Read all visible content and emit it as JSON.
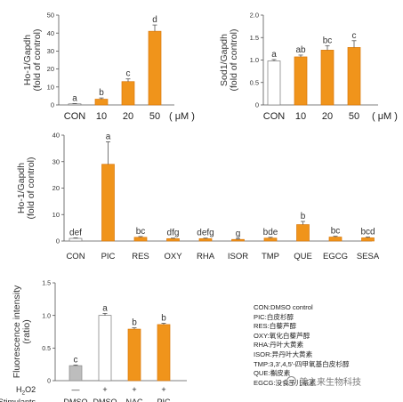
{
  "chart_data": [
    {
      "id": "panel-a",
      "type": "bar",
      "ylabel": "Ho-1/Gapdh\n(fold of control)",
      "ylim": [
        0,
        50
      ],
      "yticks": [
        0,
        10,
        20,
        30,
        40,
        50
      ],
      "categories": [
        "CON",
        "10",
        "20",
        "50"
      ],
      "unit_label": "( μM )",
      "values": [
        0.6,
        3.2,
        13,
        41
      ],
      "errors": [
        0.2,
        0.7,
        1.5,
        3.5
      ],
      "letters": [
        "a",
        "b",
        "c",
        "d"
      ],
      "fills": [
        "#ffffff",
        "#f0941b",
        "#f0941b",
        "#f0941b"
      ],
      "grid": false
    },
    {
      "id": "panel-b",
      "type": "bar",
      "ylabel": "Sod1/Gapdh\n(fold of control)",
      "ylim": [
        0,
        2.0
      ],
      "yticks": [
        0,
        0.5,
        1.0,
        1.5,
        2.0
      ],
      "ytick_labels": [
        "0",
        "0.5",
        "1.0",
        "1.5",
        "2.0"
      ],
      "categories": [
        "CON",
        "10",
        "20",
        "50"
      ],
      "unit_label": "( μM )",
      "values": [
        0.98,
        1.07,
        1.22,
        1.28
      ],
      "errors": [
        0.03,
        0.04,
        0.1,
        0.15
      ],
      "letters": [
        "a",
        "ab",
        "bc",
        "c"
      ],
      "fills": [
        "#ffffff",
        "#f0941b",
        "#f0941b",
        "#f0941b"
      ],
      "grid": false
    },
    {
      "id": "panel-c",
      "type": "bar",
      "ylabel": "Ho-1/Gapdh\n(fold of control)",
      "ylim": [
        0,
        40
      ],
      "yticks": [
        0,
        10,
        20,
        30,
        40
      ],
      "categories": [
        "CON",
        "PIC",
        "RES",
        "OXY",
        "RHA",
        "ISOR",
        "TMP",
        "QUE",
        "EGCG",
        "SESA"
      ],
      "values": [
        1.0,
        29,
        1.4,
        0.9,
        0.9,
        0.6,
        1.1,
        6.2,
        1.5,
        1.2
      ],
      "errors": [
        0.2,
        8.5,
        0.3,
        0.2,
        0.2,
        0.2,
        0.3,
        1.2,
        0.3,
        0.3
      ],
      "letters": [
        "def",
        "a",
        "bc",
        "dfg",
        "defg",
        "g",
        "bde",
        "b",
        "bc",
        "bcd"
      ],
      "fills": [
        "#ffffff",
        "#f0941b",
        "#f0941b",
        "#f0941b",
        "#f0941b",
        "#f0941b",
        "#f0941b",
        "#f0941b",
        "#f0941b",
        "#f0941b"
      ],
      "grid": false
    },
    {
      "id": "panel-d",
      "type": "bar",
      "ylabel": "Fluorescence intensity\n(ratio)",
      "ylim": [
        0,
        1.5
      ],
      "yticks": [
        0,
        0.5,
        1.0,
        1.5
      ],
      "ytick_labels": [
        "0",
        "0.5",
        "1.0",
        "1.5"
      ],
      "row_labels": [
        "H2O2",
        "Stimulants"
      ],
      "h2o2": [
        "—",
        "+",
        "+",
        "+"
      ],
      "categories": [
        "DMSO",
        "DMSO",
        "NAC",
        "PIC"
      ],
      "values": [
        0.23,
        1.0,
        0.79,
        0.86
      ],
      "errors": [
        0.01,
        0.03,
        0.02,
        0.02
      ],
      "letters": [
        "c",
        "a",
        "b",
        "b"
      ],
      "fills": [
        "#bdbdbd",
        "#ffffff",
        "#f0941b",
        "#f0941b"
      ],
      "grid": false
    }
  ],
  "legend": [
    "CON:DMSO control",
    "PIC:白皮杉醇",
    "RES:白藜芦醇",
    "OXY:氧化白藜芦醇",
    "RHA:丹叶大黄素",
    "ISOR:异丹叶大黄素",
    "TMP:3,3',4,5'-四甲氧基白皮杉醇",
    "QUE:槲皮素",
    "EGCG:没食子儿茶素"
  ],
  "watermark": "美之来生物科技"
}
